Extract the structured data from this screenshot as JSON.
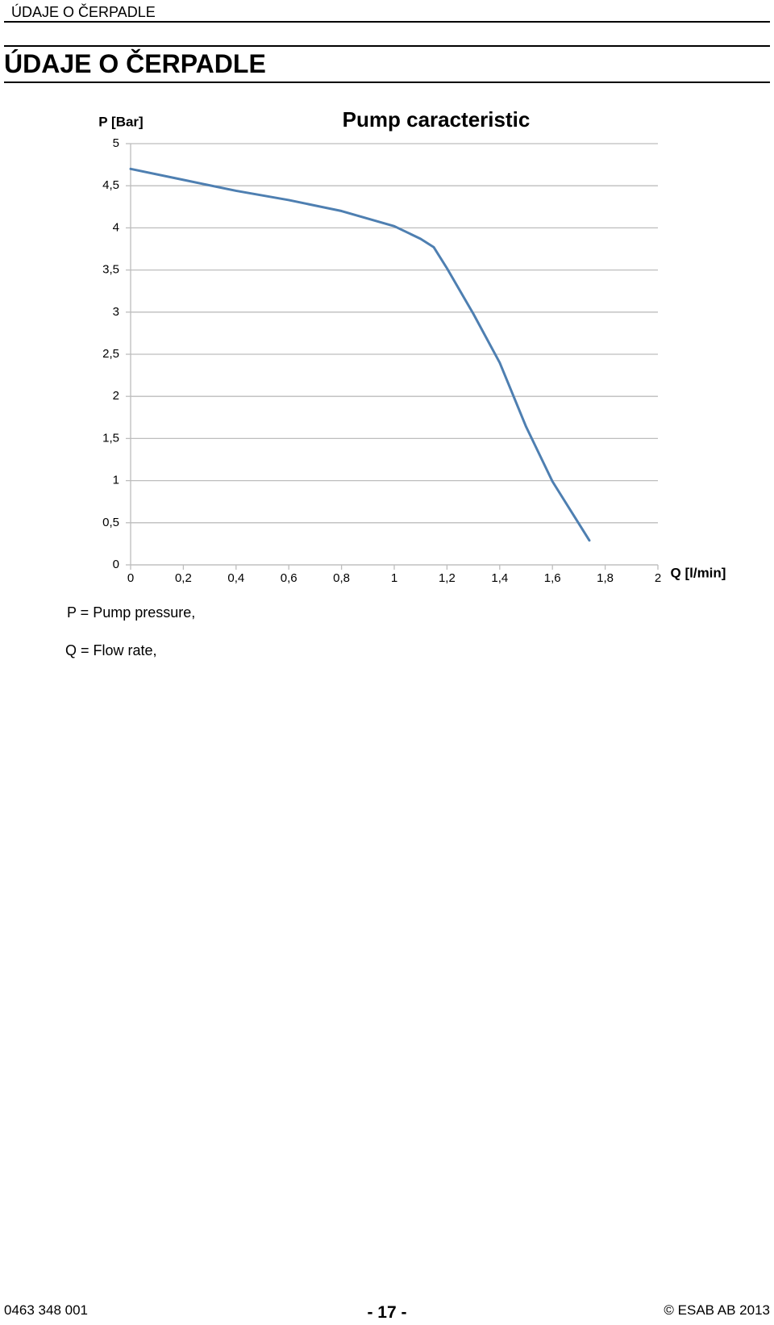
{
  "header": {
    "running_title": "ÚDAJE O ČERPADLE",
    "title": "ÚDAJE O ČERPADLE"
  },
  "chart_data": {
    "type": "line",
    "title": "Pump caracteristic",
    "y_label": "P [Bar]",
    "x_label": "Q [l/min]",
    "x": [
      0,
      0.2,
      0.4,
      0.6,
      0.8,
      1.0,
      1.1,
      1.15,
      1.2,
      1.3,
      1.4,
      1.5,
      1.6,
      1.7,
      1.74
    ],
    "values": [
      4.7,
      4.57,
      4.44,
      4.33,
      4.2,
      4.02,
      3.87,
      3.77,
      3.52,
      2.98,
      2.4,
      1.64,
      0.99,
      0.49,
      0.29
    ],
    "color": "#4e7fb1",
    "xlim": [
      0,
      2
    ],
    "xticks": [
      0,
      {
        "value": 0.2,
        "label": "0,2"
      },
      {
        "value": 0.4,
        "label": "0,4"
      },
      {
        "value": 0.6,
        "label": "0,6"
      },
      {
        "value": 0.8,
        "label": "0,8"
      },
      1,
      {
        "value": 1.2,
        "label": "1,2"
      },
      {
        "value": 1.4,
        "label": "1,4"
      },
      {
        "value": 1.6,
        "label": "1,6"
      },
      {
        "value": 1.8,
        "label": "1,8"
      },
      2
    ],
    "ylim": [
      0,
      5
    ],
    "yticks": [
      0,
      {
        "value": 0.5,
        "label": "0,5"
      },
      1,
      {
        "value": 1.5,
        "label": "1,5"
      },
      2,
      {
        "value": 2.5,
        "label": "2,5"
      },
      3,
      {
        "value": 3.5,
        "label": "3,5"
      },
      4,
      {
        "value": 4.5,
        "label": "4,5"
      },
      5
    ],
    "grid": true
  },
  "notes": [
    "P = Pump pressure,",
    "Q = Flow rate,"
  ],
  "footer": {
    "doc_number": "0463 348 001",
    "page": "- 17 -",
    "copyright": "© ESAB AB 2013"
  }
}
